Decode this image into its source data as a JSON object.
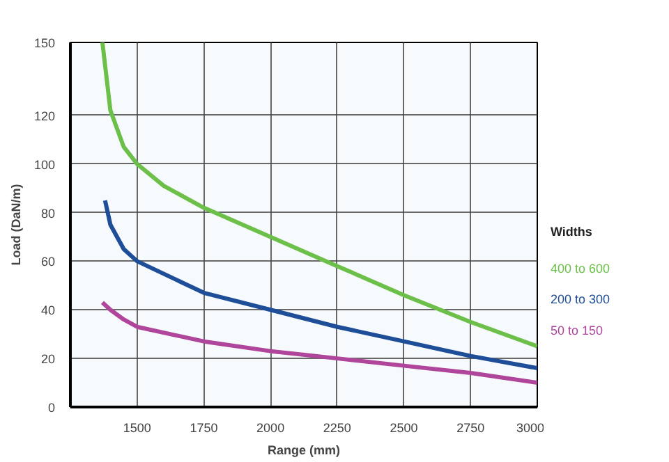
{
  "chart_data": {
    "type": "line",
    "xlabel": "Range (mm)",
    "ylabel": "Load (DaN/m)",
    "legend_title": "Widths",
    "grid": true,
    "xlim": [
      1250,
      3000
    ],
    "xticks": [
      1500,
      1750,
      2000,
      2250,
      2500,
      2750,
      3000
    ],
    "ylim": [
      0,
      150
    ],
    "yticks": [
      0,
      20,
      40,
      60,
      80,
      100,
      120,
      150
    ],
    "series": [
      {
        "name": "400 to 600",
        "color": "#6cc04a",
        "x": [
          1370,
          1400,
          1450,
          1500,
          1600,
          1750,
          2000,
          2250,
          2500,
          2750,
          3000
        ],
        "values": [
          150,
          122,
          107,
          100,
          91,
          82,
          70,
          58,
          46,
          35,
          25
        ]
      },
      {
        "name": "200 to 300",
        "color": "#1f4e99",
        "x": [
          1380,
          1400,
          1450,
          1500,
          1750,
          2000,
          2250,
          2500,
          2750,
          3000
        ],
        "values": [
          85,
          75,
          65,
          60,
          47,
          40,
          33,
          27,
          21,
          16
        ]
      },
      {
        "name": "50 to 150",
        "color": "#b0469c",
        "x": [
          1370,
          1400,
          1450,
          1500,
          1750,
          2000,
          2250,
          2500,
          2750,
          3000
        ],
        "values": [
          43,
          40,
          36,
          33,
          27,
          23,
          20,
          17,
          14,
          10
        ]
      }
    ]
  }
}
